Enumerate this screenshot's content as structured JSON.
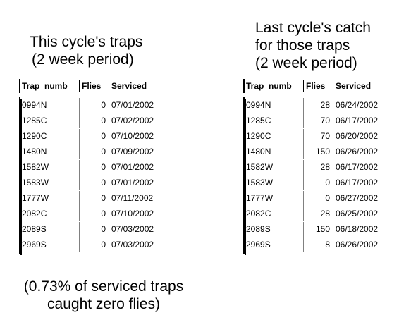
{
  "left": {
    "title_lines": [
      "This cycle's traps",
      "(2 week period)"
    ],
    "columns": [
      "Trap_numb",
      "Flies",
      "Serviced"
    ],
    "rows": [
      [
        "0994N",
        "0",
        "07/01/2002"
      ],
      [
        "1285C",
        "0",
        "07/02/2002"
      ],
      [
        "1290C",
        "0",
        "07/10/2002"
      ],
      [
        "1480N",
        "0",
        "07/09/2002"
      ],
      [
        "1582W",
        "0",
        "07/01/2002"
      ],
      [
        "1583W",
        "0",
        "07/01/2002"
      ],
      [
        "1777W",
        "0",
        "07/11/2002"
      ],
      [
        "2082C",
        "0",
        "07/10/2002"
      ],
      [
        "2089S",
        "0",
        "07/03/2002"
      ],
      [
        "2969S",
        "0",
        "07/03/2002"
      ]
    ]
  },
  "right": {
    "title_lines": [
      "Last cycle's catch",
      "for those traps",
      "(2 week period)"
    ],
    "columns": [
      "Trap_numb",
      "Flies",
      "Serviced"
    ],
    "rows": [
      [
        "0994N",
        "28",
        "06/24/2002"
      ],
      [
        "1285C",
        "70",
        "06/17/2002"
      ],
      [
        "1290C",
        "70",
        "06/20/2002"
      ],
      [
        "1480N",
        "150",
        "06/26/2002"
      ],
      [
        "1582W",
        "28",
        "06/17/2002"
      ],
      [
        "1583W",
        "0",
        "06/17/2002"
      ],
      [
        "1777W",
        "0",
        "06/27/2002"
      ],
      [
        "2082C",
        "28",
        "06/25/2002"
      ],
      [
        "2089S",
        "150",
        "06/18/2002"
      ],
      [
        "2969S",
        "8",
        "06/26/2002"
      ]
    ]
  },
  "footnote_lines": [
    "(0.73% of serviced traps",
    "caught zero flies)"
  ]
}
